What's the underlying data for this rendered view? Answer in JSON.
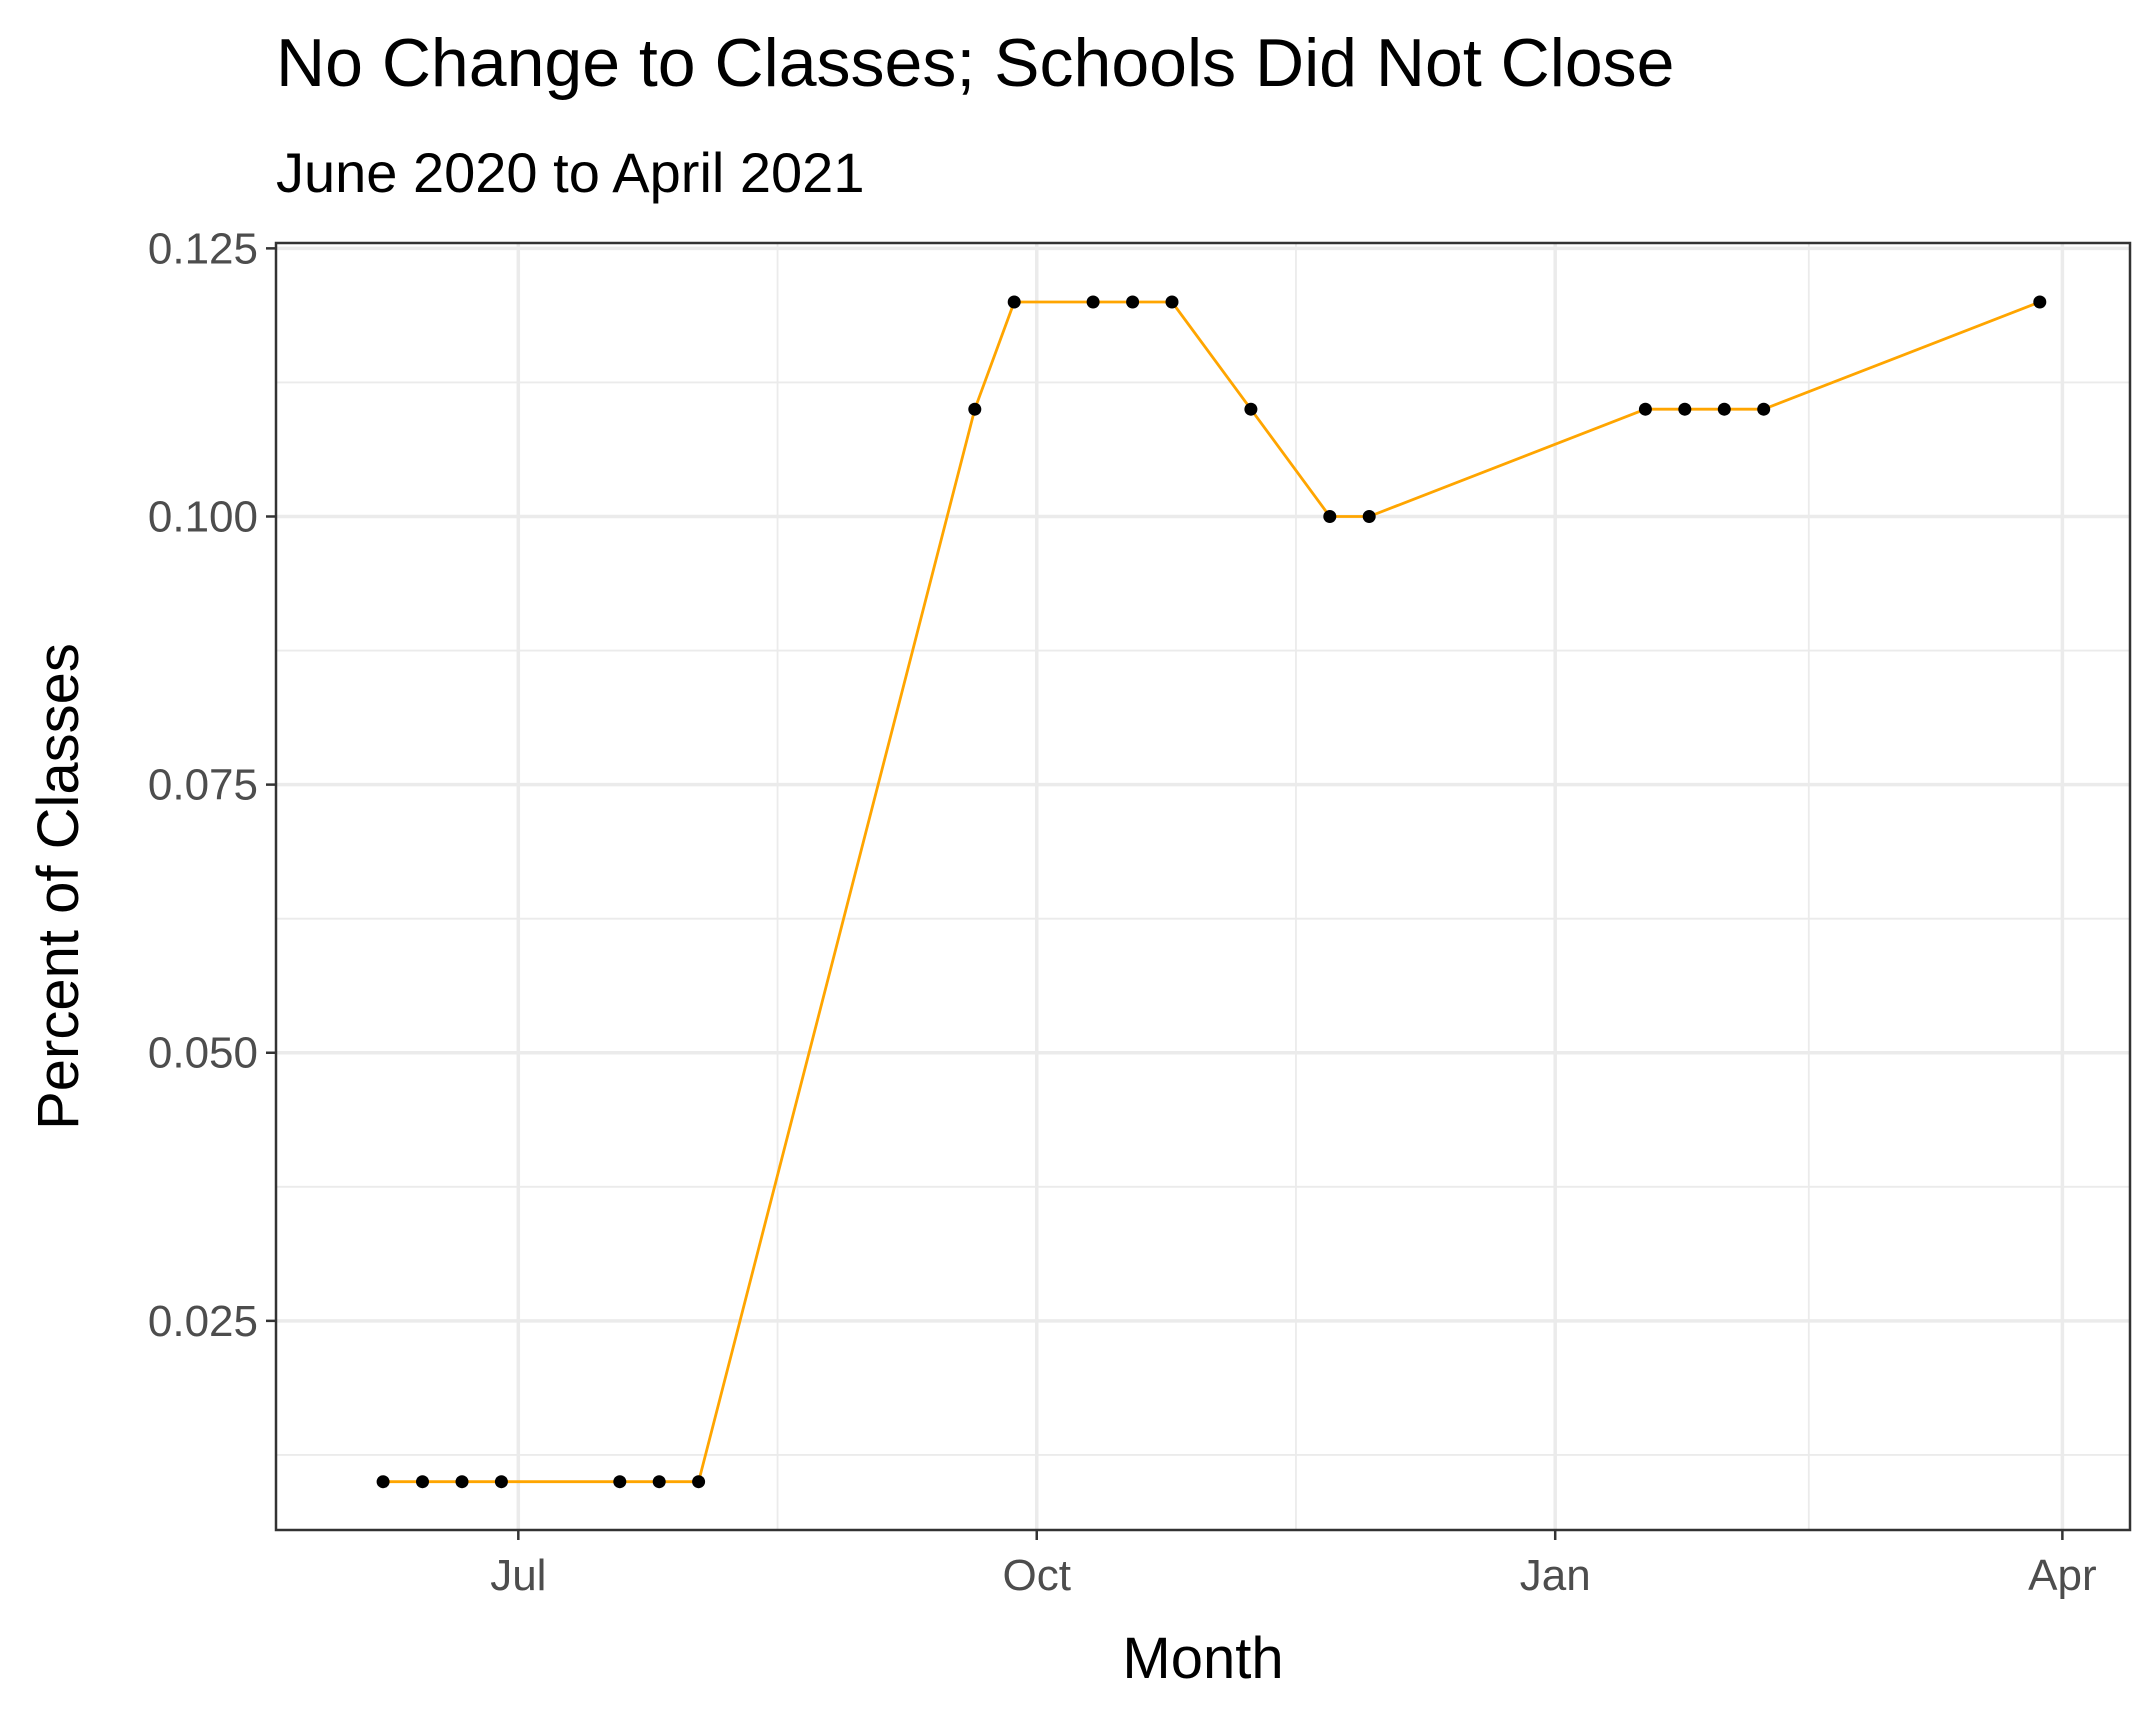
{
  "chart_data": {
    "type": "line",
    "title": "No Change to Classes; Schools Did Not Close",
    "subtitle": "June 2020 to April 2021",
    "xlabel": "Month",
    "ylabel": "Percent of Classes",
    "x_tick_labels": [
      "Jul",
      "Oct",
      "Jan",
      "Apr"
    ],
    "x_tick_dates": [
      "2020-07-01",
      "2020-10-01",
      "2021-01-01",
      "2021-04-01"
    ],
    "y_ticks": [
      0.025,
      0.05,
      0.075,
      0.1,
      0.125
    ],
    "y_tick_labels": [
      "0.025",
      "0.050",
      "0.075",
      "0.100",
      "0.125"
    ],
    "xlim": [
      "2020-05-19",
      "2021-04-13"
    ],
    "ylim": [
      0.0055,
      0.1255
    ],
    "grid": true,
    "line_color": "#FFA500",
    "point_color": "#000000",
    "series": [
      {
        "x": [
          "2020-06-07",
          "2020-06-14",
          "2020-06-21",
          "2020-06-28",
          "2020-07-19",
          "2020-07-26",
          "2020-08-02",
          "2020-09-20",
          "2020-09-27",
          "2020-10-11",
          "2020-10-18",
          "2020-10-25",
          "2020-11-08",
          "2020-11-22",
          "2020-11-29",
          "2021-01-17",
          "2021-01-24",
          "2021-01-31",
          "2021-02-07",
          "2021-03-28"
        ],
        "values": [
          0.01,
          0.01,
          0.01,
          0.01,
          0.01,
          0.01,
          0.01,
          0.11,
          0.12,
          0.12,
          0.12,
          0.12,
          0.11,
          0.1,
          0.1,
          0.11,
          0.11,
          0.11,
          0.11,
          0.12
        ]
      }
    ]
  }
}
